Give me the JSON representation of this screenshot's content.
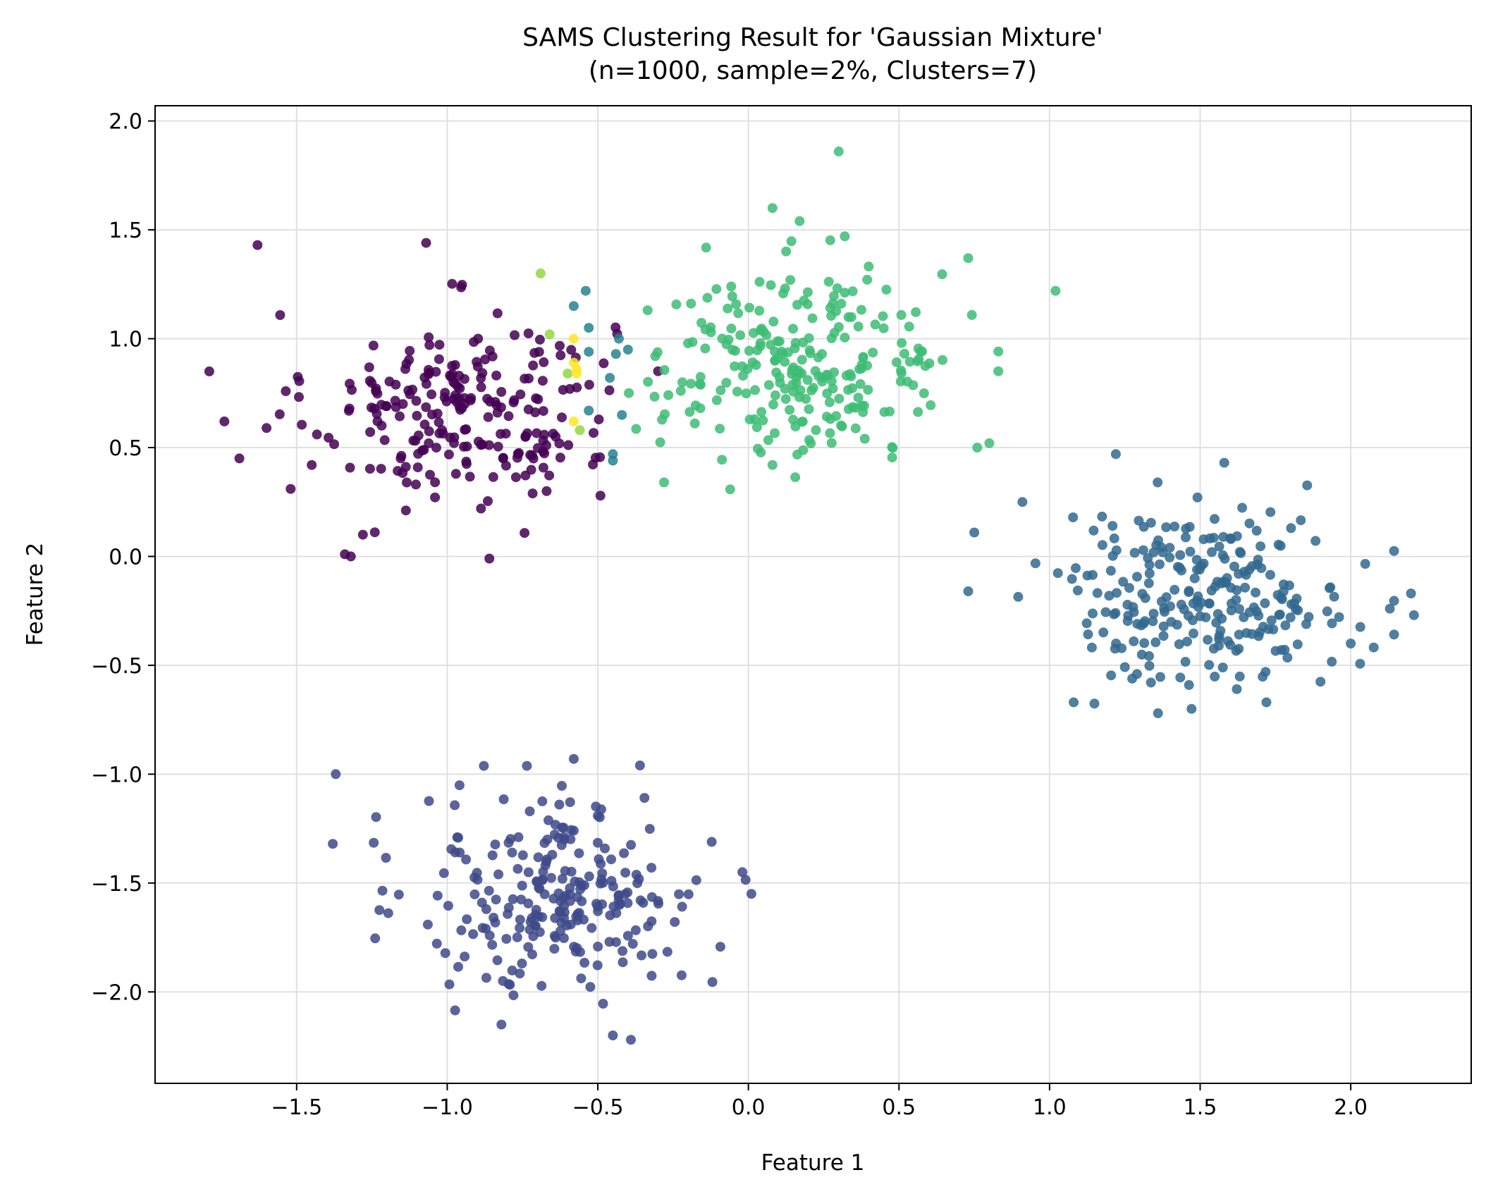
{
  "chart_data": {
    "type": "scatter",
    "title_line1": "SAMS Clustering Result for 'Gaussian Mixture'",
    "title_line2": "(n=1000, sample=2%, Clusters=7)",
    "xlabel": "Feature 1",
    "ylabel": "Feature 2",
    "xlim": [
      -1.97,
      2.4
    ],
    "ylim": [
      -2.42,
      2.07
    ],
    "xticks": [
      -1.5,
      -1.0,
      -0.5,
      0.0,
      0.5,
      1.0,
      1.5,
      2.0
    ],
    "xtick_labels": [
      "−1.5",
      "−1.0",
      "−0.5",
      "0.0",
      "0.5",
      "1.0",
      "1.5",
      "2.0"
    ],
    "yticks": [
      2.0,
      1.5,
      1.0,
      0.5,
      0.0,
      -0.5,
      -1.0,
      -1.5,
      -2.0
    ],
    "ytick_labels": [
      "2.0",
      "1.5",
      "1.0",
      "0.5",
      "0.0",
      "−0.5",
      "−1.0",
      "−1.5",
      "−2.0"
    ],
    "grid": true,
    "series": [
      {
        "color": "#440154",
        "center": [
          -0.95,
          0.68
        ],
        "spread": [
          0.25,
          0.22
        ],
        "count": 230,
        "points": [
          [
            -1.63,
            1.43
          ],
          [
            -1.07,
            1.44
          ],
          [
            -1.79,
            0.85
          ],
          [
            -1.74,
            0.62
          ],
          [
            -1.69,
            0.45
          ],
          [
            -1.52,
            0.31
          ],
          [
            -1.34,
            0.01
          ],
          [
            -1.32,
            0.0
          ],
          [
            -0.86,
            -0.01
          ],
          [
            -0.67,
            0.3
          ],
          [
            -1.28,
            0.1
          ],
          [
            -0.64,
            0.55
          ],
          [
            -1.45,
            0.42
          ]
        ]
      },
      {
        "color": "#3e4a89",
        "center": [
          -0.62,
          -1.56
        ],
        "spread": [
          0.24,
          0.23
        ],
        "count": 240,
        "points": [
          [
            -1.37,
            -1.0
          ],
          [
            -1.38,
            -1.32
          ],
          [
            -0.82,
            -2.15
          ],
          [
            -0.45,
            -2.2
          ],
          [
            -0.39,
            -2.22
          ],
          [
            -0.58,
            -0.93
          ],
          [
            -0.36,
            -0.96
          ],
          [
            0.01,
            -1.55
          ],
          [
            -0.02,
            -1.45
          ]
        ]
      },
      {
        "color": "#31688e",
        "center": [
          1.52,
          -0.18
        ],
        "spread": [
          0.24,
          0.2
        ],
        "count": 250,
        "points": [
          [
            0.73,
            -0.16
          ],
          [
            0.75,
            0.11
          ],
          [
            0.91,
            0.25
          ],
          [
            1.08,
            -0.67
          ],
          [
            1.36,
            -0.72
          ],
          [
            1.72,
            -0.67
          ],
          [
            2.13,
            -0.24
          ],
          [
            2.2,
            -0.17
          ],
          [
            2.21,
            -0.27
          ],
          [
            2.0,
            -0.4
          ],
          [
            1.22,
            0.47
          ],
          [
            1.58,
            0.43
          ]
        ]
      },
      {
        "color": "#26828e",
        "center": [
          -0.45,
          0.85
        ],
        "spread": [
          0.06,
          0.2
        ],
        "count": 0,
        "points": [
          [
            -0.54,
            1.22
          ],
          [
            -0.58,
            1.15
          ],
          [
            -0.53,
            1.05
          ],
          [
            -0.43,
            1.0
          ],
          [
            -0.4,
            0.95
          ],
          [
            -0.53,
            0.94
          ],
          [
            -0.44,
            0.93
          ],
          [
            -0.46,
            0.82
          ],
          [
            -0.42,
            0.65
          ],
          [
            -0.53,
            0.67
          ],
          [
            -0.45,
            0.47
          ],
          [
            -0.45,
            0.44
          ]
        ]
      },
      {
        "color": "#3dbc74",
        "center": [
          0.18,
          0.88
        ],
        "spread": [
          0.25,
          0.22
        ],
        "count": 250,
        "points": [
          [
            0.3,
            1.86
          ],
          [
            0.08,
            1.6
          ],
          [
            0.17,
            1.54
          ],
          [
            0.32,
            1.47
          ],
          [
            1.02,
            1.22
          ],
          [
            0.73,
            1.37
          ],
          [
            0.8,
            0.52
          ],
          [
            0.76,
            0.5
          ],
          [
            -0.28,
            0.34
          ],
          [
            0.08,
            0.42
          ]
        ]
      },
      {
        "color": "#90d743",
        "center": [
          -0.65,
          0.9
        ],
        "spread": [
          0.04,
          0.2
        ],
        "count": 0,
        "points": [
          [
            -0.69,
            1.3
          ],
          [
            -0.66,
            1.02
          ],
          [
            -0.6,
            0.84
          ],
          [
            -0.56,
            0.58
          ]
        ]
      },
      {
        "color": "#fde725",
        "center": [
          -0.57,
          0.9
        ],
        "spread": [
          0.02,
          0.1
        ],
        "count": 0,
        "points": [
          [
            -0.58,
            1.0
          ],
          [
            -0.58,
            0.89
          ],
          [
            -0.57,
            0.86
          ],
          [
            -0.57,
            0.84
          ],
          [
            -0.58,
            0.62
          ]
        ]
      }
    ]
  }
}
